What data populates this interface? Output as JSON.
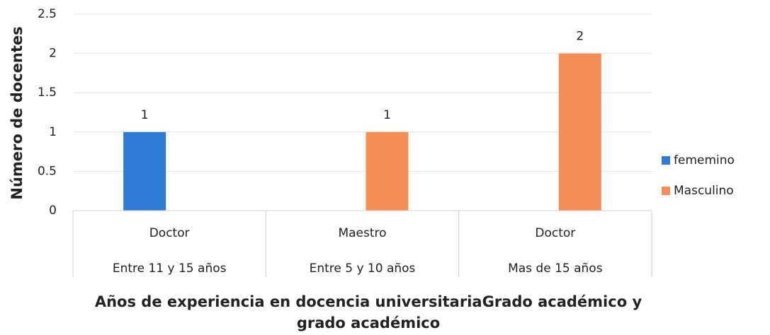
{
  "chart_data": {
    "type": "bar",
    "y_label": "Número de docentes",
    "x_label": "Años de experiencia en docencia universitariaGrado académico y grado académico",
    "categories": [
      "Doctor",
      "Maestro",
      "Doctor"
    ],
    "groups": [
      "Entre 11 y 15 años",
      "Entre 5 y 10 años",
      "Mas de 15 años"
    ],
    "series": [
      {
        "name": "fememino",
        "color": "#2e7bd6",
        "values": [
          1,
          null,
          null
        ]
      },
      {
        "name": "Masculino",
        "color": "#f58f55",
        "values": [
          null,
          1,
          2
        ]
      }
    ],
    "ylim": [
      0,
      2.5
    ],
    "yticks": [
      0,
      0.5,
      1,
      1.5,
      2,
      2.5
    ],
    "grid": true,
    "legend": "right"
  }
}
